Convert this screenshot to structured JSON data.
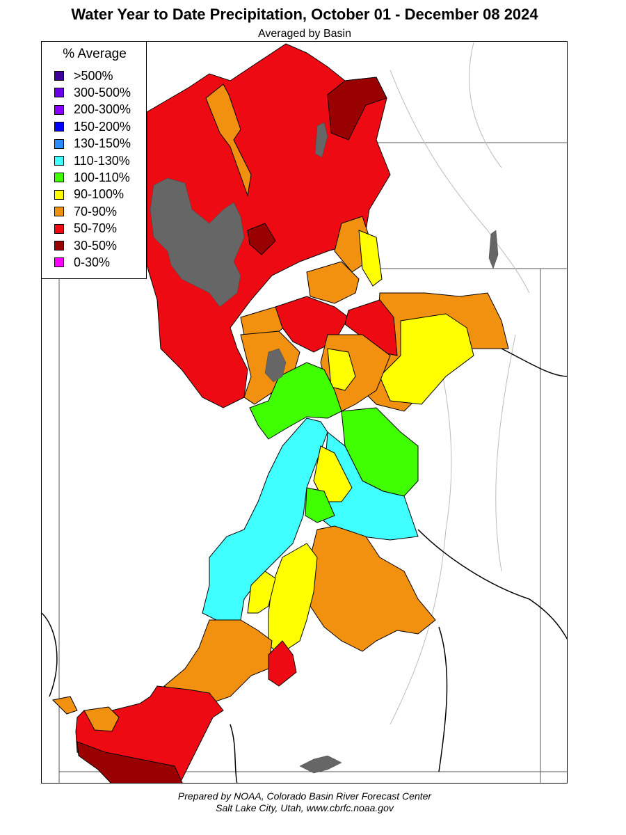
{
  "header": {
    "title": "Water Year to Date Precipitation, October 01  - December 08 2024",
    "subtitle": "Averaged by Basin"
  },
  "legend": {
    "title": "% Average",
    "items": [
      {
        "label": ">500%",
        "color": "#3f0099"
      },
      {
        "label": "300-500%",
        "color": "#6a00e8"
      },
      {
        "label": "200-300%",
        "color": "#8a00ff"
      },
      {
        "label": "150-200%",
        "color": "#0000ff"
      },
      {
        "label": "130-150%",
        "color": "#2a8cff"
      },
      {
        "label": "110-130%",
        "color": "#40ffff"
      },
      {
        "label": "100-110%",
        "color": "#40ff00"
      },
      {
        "label": "90-100%",
        "color": "#ffff00"
      },
      {
        "label": "70-90%",
        "color": "#f29010"
      },
      {
        "label": "50-70%",
        "color": "#ee0a12"
      },
      {
        "label": "30-50%",
        "color": "#990000"
      },
      {
        "label": "0-30%",
        "color": "#ff00ff"
      }
    ]
  },
  "lake_color": "#666666",
  "footer": {
    "line1": "Prepared by NOAA, Colorado Basin River Forecast Center",
    "line2": "Salt Lake City, Utah, www.cbrfc.noaa.gov"
  }
}
